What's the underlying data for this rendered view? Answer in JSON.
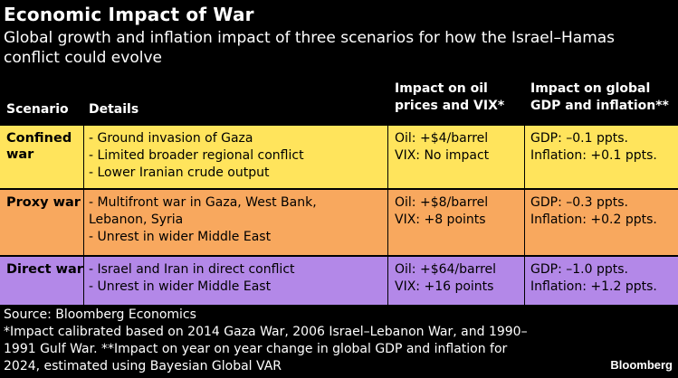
{
  "title": "Economic Impact of War",
  "subtitle": "Global growth and inflation impact of three scenarios for how the Israel–Hamas conflict could evolve",
  "headers": {
    "scenario": "Scenario",
    "details": "Details",
    "oil": "Impact on oil prices and VIX*",
    "gdp": "Impact on global GDP and inflation**"
  },
  "rows": [
    {
      "scenario": "Confined war",
      "color": "#FFE45C",
      "details": [
        "- Ground invasion of Gaza",
        "- Limited broader regional conflict",
        "- Lower Iranian crude output"
      ],
      "oil": [
        "Oil: +$4/barrel",
        "VIX: No impact"
      ],
      "gdp": [
        "GDP: –0.1 ppts.",
        "Inflation: +0.1 ppts."
      ]
    },
    {
      "scenario": "Proxy war",
      "color": "#F8A85E",
      "details": [
        "- Multifront war in Gaza, West Bank, Lebanon, Syria",
        "- Unrest in wider Middle East"
      ],
      "oil": [
        "Oil: +$8/barrel",
        "VIX: +8 points"
      ],
      "gdp": [
        "GDP: –0.3 ppts.",
        "Inflation: +0.2 ppts."
      ]
    },
    {
      "scenario": "Direct war",
      "color": "#B388E8",
      "details": [
        "- Israel and Iran in direct conflict",
        "- Unrest in wider Middle East"
      ],
      "oil": [
        "Oil: +$64/barrel",
        "VIX: +16 points"
      ],
      "gdp": [
        "GDP: –1.0 ppts.",
        "Inflation: +1.2 ppts."
      ]
    }
  ],
  "source": "Source: Bloomberg Economics",
  "footnote": "*Impact calibrated based on 2014 Gaza War, 2006 Israel–Lebanon War, and 1990–1991 Gulf War. **Impact on year on year change in global GDP and inflation for 2024, estimated using Bayesian Global VAR",
  "brand": "Bloomberg"
}
